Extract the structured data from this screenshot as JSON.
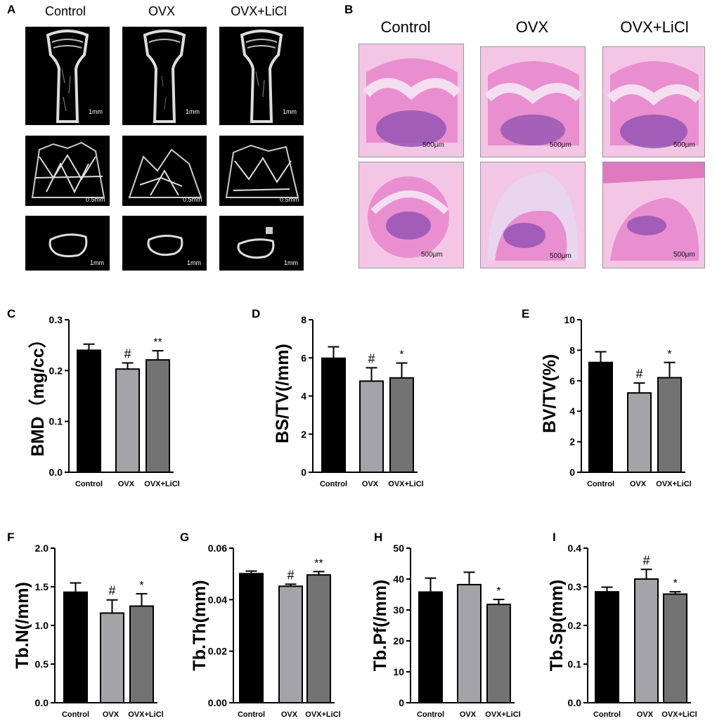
{
  "panel_a": {
    "letter": "A",
    "columns": [
      "Control",
      "OVX",
      "OVX+LiCl"
    ],
    "rows": [
      {
        "scalebars": [
          "1mm",
          "1mm",
          "1mm"
        ]
      },
      {
        "scalebars": [
          "0.5mm",
          "0.5mm",
          "0.5mm"
        ]
      },
      {
        "scalebars": [
          "1mm",
          "1mm",
          "1mm"
        ]
      }
    ]
  },
  "panel_b": {
    "letter": "B",
    "columns": [
      "Control",
      "OVX",
      "OVX+LiCl"
    ],
    "rows": [
      {
        "scalebars": [
          "500μm",
          "500μm",
          "500μm"
        ]
      },
      {
        "scalebars": [
          "500μm",
          "500μm",
          "500μm"
        ]
      }
    ]
  },
  "chart_data": [
    {
      "panel": "C",
      "type": "bar",
      "categories": [
        "Control",
        "OVX",
        "OVX+LiCl"
      ],
      "values": [
        0.24,
        0.203,
        0.221
      ],
      "errors": [
        0.012,
        0.012,
        0.018
      ],
      "significance": [
        "",
        "#",
        "**"
      ],
      "ylabel": "BMD（mg/cc）",
      "ylim": [
        0,
        0.3
      ],
      "yticks": [
        "0.0",
        "0.1",
        "0.2",
        "0.3"
      ],
      "colors": [
        "#000000",
        "#a4a4a8",
        "#737373"
      ]
    },
    {
      "panel": "D",
      "type": "bar",
      "categories": [
        "Control",
        "OVX",
        "OVX+LiCl"
      ],
      "values": [
        5.98,
        4.78,
        4.95
      ],
      "errors": [
        0.6,
        0.7,
        0.78
      ],
      "significance": [
        "",
        "#",
        "*"
      ],
      "ylabel": "BS/TV(/mm)",
      "ylim": [
        0,
        8
      ],
      "yticks": [
        "0",
        "2",
        "4",
        "6",
        "8"
      ],
      "colors": [
        "#000000",
        "#a4a4a8",
        "#737373"
      ]
    },
    {
      "panel": "E",
      "type": "bar",
      "categories": [
        "Control",
        "OVX",
        "OVX+LiCl"
      ],
      "values": [
        7.2,
        5.2,
        6.2
      ],
      "errors": [
        0.7,
        0.65,
        1.0
      ],
      "significance": [
        "",
        "#",
        "*"
      ],
      "ylabel": "BV/TV(%)",
      "ylim": [
        0,
        10
      ],
      "yticks": [
        "0",
        "2",
        "4",
        "6",
        "8",
        "10"
      ],
      "colors": [
        "#000000",
        "#a4a4a8",
        "#737373"
      ]
    },
    {
      "panel": "F",
      "type": "bar",
      "categories": [
        "Control",
        "OVX",
        "OVX+LiCl"
      ],
      "values": [
        1.43,
        1.16,
        1.25
      ],
      "errors": [
        0.12,
        0.17,
        0.16
      ],
      "significance": [
        "",
        "#",
        "*"
      ],
      "ylabel": "Tb.N(/mm)",
      "ylim": [
        0,
        2
      ],
      "yticks": [
        "0.0",
        "0.5",
        "1.0",
        "1.5",
        "2.0"
      ],
      "colors": [
        "#000000",
        "#a4a4a8",
        "#737373"
      ]
    },
    {
      "panel": "G",
      "type": "bar",
      "categories": [
        "Control",
        "OVX",
        "OVX+LiCl"
      ],
      "values": [
        0.0501,
        0.0452,
        0.0496
      ],
      "errors": [
        0.001,
        0.0008,
        0.0013
      ],
      "significance": [
        "",
        "#",
        "**"
      ],
      "ylabel": "Tb.Th(mm)",
      "ylim": [
        0,
        0.06
      ],
      "yticks": [
        "0.00",
        "0.02",
        "0.04",
        "0.06"
      ],
      "colors": [
        "#000000",
        "#a4a4a8",
        "#737373"
      ]
    },
    {
      "panel": "H",
      "type": "bar",
      "categories": [
        "Control",
        "OVX",
        "OVX+LiCl"
      ],
      "values": [
        35.8,
        38.2,
        31.8
      ],
      "errors": [
        4.5,
        4.0,
        1.6
      ],
      "significance": [
        "",
        "",
        "*"
      ],
      "ylabel": "Tb.Pf(/mm)",
      "ylim": [
        0,
        50
      ],
      "yticks": [
        "0",
        "10",
        "20",
        "30",
        "40",
        "50"
      ],
      "colors": [
        "#000000",
        "#a4a4a8",
        "#737373"
      ]
    },
    {
      "panel": "I",
      "type": "bar",
      "categories": [
        "Control",
        "OVX",
        "OVX+LiCl"
      ],
      "values": [
        0.287,
        0.32,
        0.281
      ],
      "errors": [
        0.012,
        0.025,
        0.006
      ],
      "significance": [
        "",
        "#",
        "*"
      ],
      "ylabel": "Tb.Sp(mm)",
      "ylim": [
        0,
        0.4
      ],
      "yticks": [
        "0.0",
        "0.1",
        "0.2",
        "0.3",
        "0.4"
      ],
      "colors": [
        "#000000",
        "#a4a4a8",
        "#737373"
      ]
    }
  ]
}
